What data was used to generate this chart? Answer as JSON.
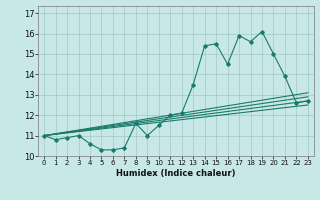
{
  "title": "",
  "xlabel": "Humidex (Indice chaleur)",
  "ylabel": "",
  "background_color": "#c8e8e8",
  "grid_color": "#a8cccc",
  "line_color": "#1a7a6a",
  "xlim": [
    -0.5,
    23.5
  ],
  "ylim": [
    10.0,
    17.35
  ],
  "yticks": [
    10,
    11,
    12,
    13,
    14,
    15,
    16,
    17
  ],
  "xticks": [
    0,
    1,
    2,
    3,
    4,
    5,
    6,
    7,
    8,
    9,
    10,
    11,
    12,
    13,
    14,
    15,
    16,
    17,
    18,
    19,
    20,
    21,
    22,
    23
  ],
  "line1_x": [
    0,
    1,
    2,
    3,
    4,
    5,
    6,
    7,
    8,
    9,
    10,
    11,
    12,
    13,
    14,
    15,
    16,
    17,
    18,
    19,
    20,
    21,
    22,
    23
  ],
  "line1_y": [
    11.0,
    10.8,
    10.9,
    11.0,
    10.6,
    10.3,
    10.3,
    10.4,
    11.6,
    11.0,
    11.5,
    12.0,
    12.1,
    13.5,
    15.4,
    15.5,
    14.5,
    15.9,
    15.6,
    16.1,
    15.0,
    13.9,
    12.6,
    12.7
  ],
  "line2_x": [
    0,
    23
  ],
  "line2_y": [
    11.0,
    12.5
  ],
  "line3_x": [
    0,
    23
  ],
  "line3_y": [
    11.0,
    12.7
  ],
  "line4_x": [
    0,
    23
  ],
  "line4_y": [
    11.0,
    12.9
  ],
  "line5_x": [
    0,
    23
  ],
  "line5_y": [
    11.0,
    13.1
  ]
}
